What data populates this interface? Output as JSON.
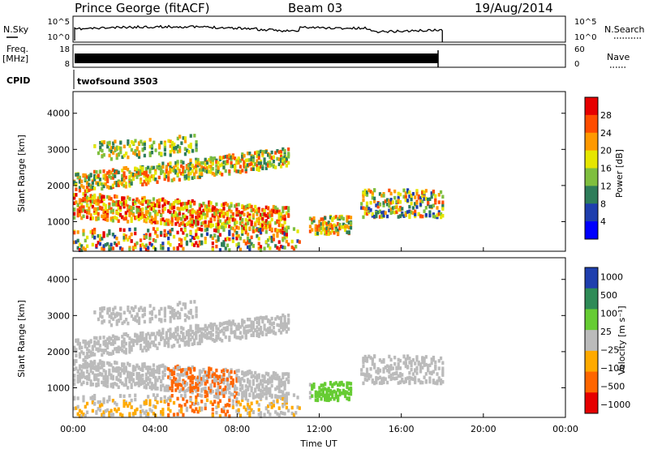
{
  "header": {
    "station": "Prince George (fitACF)",
    "beam": "Beam 03",
    "date": "19/Aug/2014"
  },
  "nsky_panel": {
    "left_label": "N.Sky",
    "left_ticks": [
      "10^5",
      "10^0"
    ],
    "right_ticks": [
      "10^5",
      "10^0"
    ],
    "right_label": "N.Search"
  },
  "freq_panel": {
    "label_line1": "Freq.",
    "label_line2": "[MHz]",
    "left_ticks": [
      "18",
      "8"
    ],
    "right_ticks": [
      "60",
      "0"
    ],
    "right_label": "Nave"
  },
  "cpid_panel": {
    "label": "CPID",
    "program": "twofsound 3503"
  },
  "colors": {
    "power_scale": [
      "#0000ff",
      "#1f3fae",
      "#2e7d5a",
      "#7fbf3f",
      "#e6e600",
      "#ff9900",
      "#ff4d00",
      "#e60000"
    ],
    "velocity_scale": [
      "#e60000",
      "#ff6600",
      "#ffaa00",
      "#bbbbbb",
      "#66cc33",
      "#2e8b57",
      "#1f3fae"
    ]
  },
  "chart_data": [
    {
      "type": "heatmap",
      "title": "",
      "xlabel": "",
      "ylabel": "Slant Range [km]",
      "x_ticks": [
        "00:00",
        "04:00",
        "08:00",
        "12:00",
        "16:00",
        "20:00",
        "00:00"
      ],
      "y_ticks": [
        1000,
        2000,
        3000,
        4000
      ],
      "xlim_hours": [
        0,
        24
      ],
      "ylim_km": [
        180,
        4600
      ],
      "data_end_hours": 18,
      "colorbar": {
        "label": "Power [dB]",
        "ticks": [
          4,
          8,
          12,
          16,
          20,
          24,
          28
        ],
        "range": [
          0,
          32
        ]
      }
    },
    {
      "type": "heatmap",
      "title": "",
      "xlabel": "Time UT",
      "ylabel": "Slant Range [km]",
      "x_ticks": [
        "00:00",
        "04:00",
        "08:00",
        "12:00",
        "16:00",
        "20:00",
        "00:00"
      ],
      "y_ticks": [
        1000,
        2000,
        3000,
        4000
      ],
      "xlim_hours": [
        0,
        24
      ],
      "ylim_km": [
        180,
        4600
      ],
      "data_end_hours": 18,
      "colorbar": {
        "label": "Velocity [m s⁻¹]",
        "ticks": [
          "1000",
          "500",
          "100",
          "25",
          "−25",
          "−100",
          "−500",
          "−1000"
        ]
      }
    }
  ]
}
